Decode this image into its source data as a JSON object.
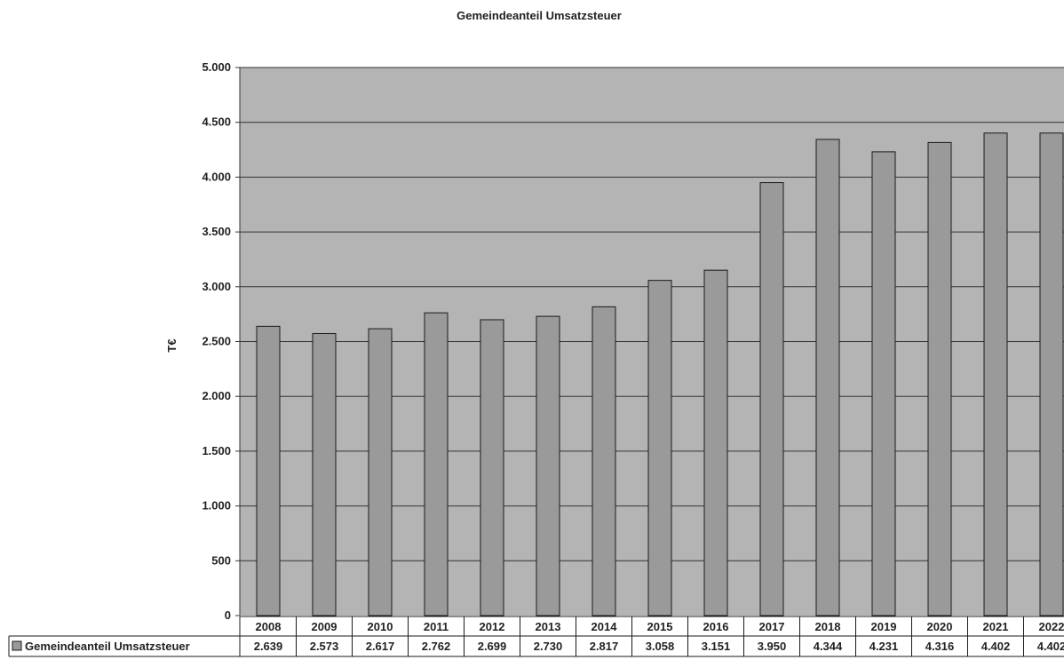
{
  "chart_data": {
    "type": "bar",
    "title": "Gemeindeanteil Umsatzsteuer",
    "ylabel": "T€",
    "xlabel": "",
    "ylim": [
      0,
      5000
    ],
    "y_ticks": [
      0,
      500,
      1000,
      1500,
      2000,
      2500,
      3000,
      3500,
      4000,
      4500,
      5000
    ],
    "y_tick_labels": [
      "0",
      "500",
      "1.000",
      "1.500",
      "2.000",
      "2.500",
      "3.000",
      "3.500",
      "4.000",
      "4.500",
      "5.000"
    ],
    "grid": true,
    "legend": "data-table",
    "categories": [
      "2008",
      "2009",
      "2010",
      "2011",
      "2012",
      "2013",
      "2014",
      "2015",
      "2016",
      "2017",
      "2018",
      "2019",
      "2020",
      "2021",
      "2022"
    ],
    "series": [
      {
        "name": "Gemeindeanteil Umsatzsteuer",
        "values": [
          2639,
          2573,
          2617,
          2762,
          2699,
          2730,
          2817,
          3058,
          3151,
          3950,
          4344,
          4231,
          4316,
          4402,
          4402
        ],
        "value_labels": [
          "2.639",
          "2.573",
          "2.617",
          "2.762",
          "2.699",
          "2.730",
          "2.817",
          "3.058",
          "3.151",
          "3.950",
          "4.344",
          "4.231",
          "4.316",
          "4.402",
          "4.402"
        ]
      }
    ],
    "colors": {
      "plot_background": "#b4b4b4",
      "bar_fill": "#9a9a9a",
      "bar_stroke": "#1a1a1a",
      "gridline": "#333333"
    }
  }
}
